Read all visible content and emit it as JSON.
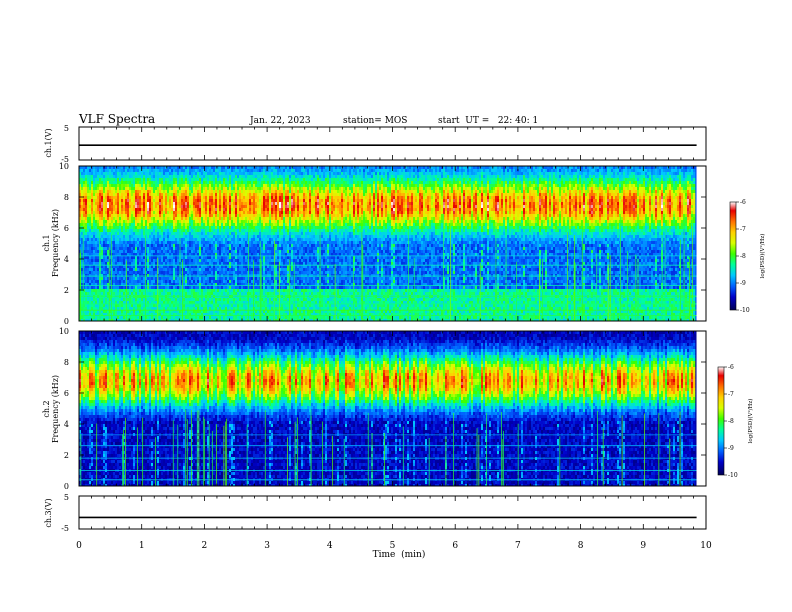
{
  "header": {
    "title": "VLF Spectra",
    "date": "Jan. 22, 2023",
    "station": "station= MOS",
    "start_ut": "start  UT =   22: 40: 1"
  },
  "chart_data": [
    {
      "type": "line",
      "name": "ch1-voltage",
      "ylabel": "ch.1(V)",
      "ylim": [
        -5,
        5
      ],
      "yticks": [
        "5",
        "-5"
      ],
      "x": [
        0,
        9.85
      ],
      "values": [
        -0.5,
        -0.5
      ],
      "line_color": "#000000"
    },
    {
      "type": "heatmap",
      "name": "ch1-spectrogram",
      "ylabel": "ch.1\nFrequency (kHz)",
      "ylim": [
        0,
        10
      ],
      "yticks": [
        "0",
        "2",
        "4",
        "6",
        "8",
        "10"
      ],
      "xlim": [
        0,
        9.85
      ],
      "colorbar": {
        "label": "log(PSD)(V²/Hz)",
        "range": [
          -10,
          -6
        ],
        "ticks": [
          "-6",
          "-7",
          "-8",
          "-9",
          "-10"
        ]
      }
    },
    {
      "type": "heatmap",
      "name": "ch2-spectrogram",
      "ylabel": "ch.2\nFrequency (kHz)",
      "ylim": [
        0,
        10
      ],
      "yticks": [
        "0",
        "2",
        "4",
        "6",
        "8",
        "10"
      ],
      "xlim": [
        0,
        9.85
      ],
      "colorbar": {
        "label": "log(PSD)(V²/Hz)",
        "range": [
          -10,
          -6
        ],
        "ticks": [
          "-6",
          "-7",
          "-8",
          "-9",
          "-10"
        ]
      }
    },
    {
      "type": "line",
      "name": "ch3-voltage",
      "ylabel": "ch.3(V)",
      "ylim": [
        -5,
        5
      ],
      "yticks": [
        "5",
        "-5"
      ],
      "x": [
        0,
        9.85
      ],
      "values": [
        -1.5,
        -1.5
      ],
      "line_color": "#000000"
    }
  ],
  "xaxis": {
    "label": "Time  (min)",
    "range": [
      0,
      10
    ],
    "ticks": [
      "0",
      "1",
      "2",
      "3",
      "4",
      "5",
      "6",
      "7",
      "8",
      "9",
      "10"
    ]
  },
  "colorscale": [
    "#000055",
    "#0000c8",
    "#0060ff",
    "#00c8ff",
    "#00ff9a",
    "#3cff00",
    "#d8ff00",
    "#ffd000",
    "#ff7000",
    "#e80000",
    "#ffffff"
  ]
}
